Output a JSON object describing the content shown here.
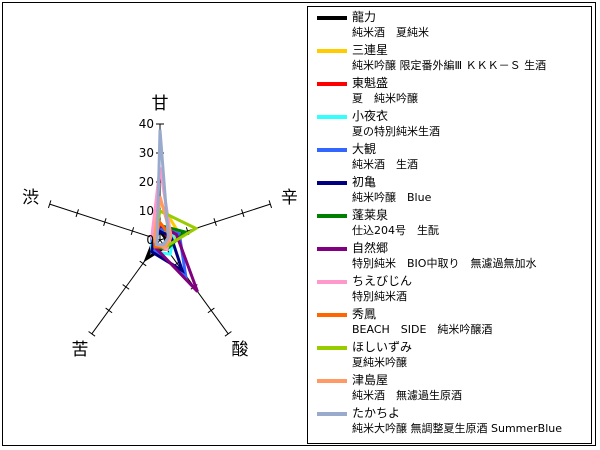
{
  "chart_data": {
    "type": "radar",
    "axes": [
      "甘",
      "辛",
      "酸",
      "苦",
      "渋"
    ],
    "r_ticks": [
      "0",
      "10",
      "20",
      "30",
      "40"
    ],
    "rmax": 40,
    "legend_placement": "right",
    "grid": false,
    "series": [
      {
        "name": "龍力",
        "subtitle": "純米酒　夏純米",
        "color": "#000000",
        "values": [
          3,
          2,
          3,
          8,
          2
        ]
      },
      {
        "name": "三連星",
        "subtitle": "純米吟醸 限定番外編Ⅲ ＫＫＫ－Ｓ 生酒",
        "color": "#ffcc00",
        "values": [
          13,
          7,
          3,
          2,
          3
        ]
      },
      {
        "name": "東魁盛",
        "subtitle": "夏　純米吟醸",
        "color": "#ff0000",
        "values": [
          4,
          3,
          4,
          3,
          2
        ]
      },
      {
        "name": "小夜衣",
        "subtitle": "夏の特別純米生酒",
        "color": "#33ffff",
        "values": [
          3,
          5,
          6,
          5,
          3
        ]
      },
      {
        "name": "大観",
        "subtitle": "純米酒　生酒",
        "color": "#3366ff",
        "values": [
          4,
          7,
          15,
          4,
          3
        ]
      },
      {
        "name": "初亀",
        "subtitle": "純米吟醸　Blue",
        "color": "#000080",
        "values": [
          3,
          4,
          13,
          5,
          2
        ]
      },
      {
        "name": "蓬莱泉",
        "subtitle": "仕込204号　生酛",
        "color": "#008000",
        "values": [
          5,
          9,
          4,
          3,
          2
        ]
      },
      {
        "name": "自然郷",
        "subtitle": "特別純米　BIO中取り　無濾過無加水",
        "color": "#800080",
        "values": [
          5,
          6,
          22,
          3,
          2
        ]
      },
      {
        "name": "ちえびじん",
        "subtitle": "特別純米酒",
        "color": "#ff99cc",
        "values": [
          25,
          4,
          4,
          2,
          3
        ]
      },
      {
        "name": "秀鳳",
        "subtitle": "BEACH　SIDE　純米吟醸酒",
        "color": "#ff6600",
        "values": [
          6,
          4,
          3,
          3,
          2
        ]
      },
      {
        "name": "ほしいずみ",
        "subtitle": "夏純米吟醸",
        "color": "#99cc00",
        "values": [
          10,
          13,
          3,
          2,
          2
        ]
      },
      {
        "name": "津島屋",
        "subtitle": "純米酒　無濾過生原酒",
        "color": "#ff9966",
        "values": [
          15,
          4,
          3,
          2,
          2
        ]
      },
      {
        "name": "たかちよ",
        "subtitle": "純米大吟醸 無調整夏生原酒 SummerBlue",
        "color": "#99aacc",
        "values": [
          38,
          3,
          2,
          2,
          1
        ]
      }
    ]
  }
}
